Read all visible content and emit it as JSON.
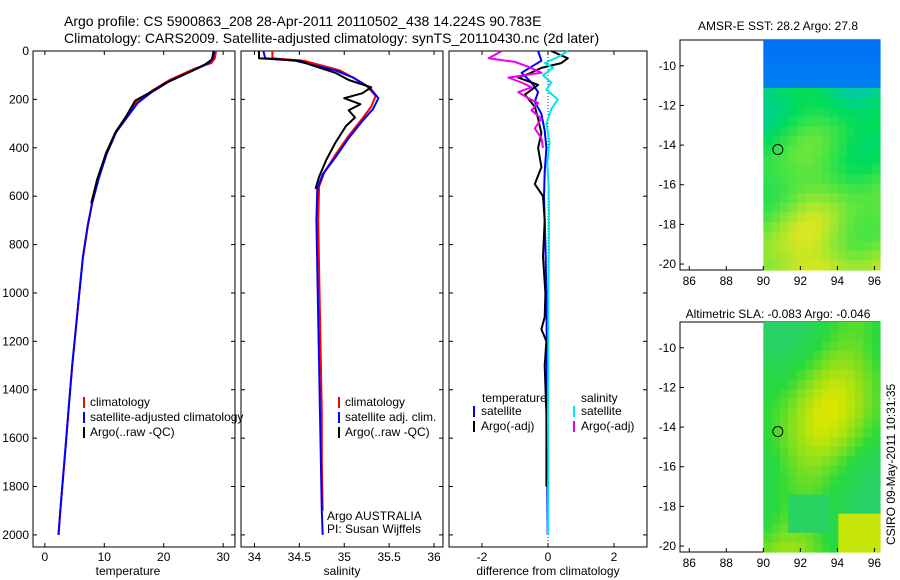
{
  "header": {
    "line1": "Argo profile: CS 5900863_208 28-Apr-2011 20110502_438 14.224S 90.783E",
    "line2": "Climatology: CARS2009. Satellite-adjusted climatology: synTS_20110430.nc (2d later)"
  },
  "footer": {
    "stamp": "CSIRO 09-May-2011 10:31:35",
    "argo_line1": "Argo AUSTRALIA",
    "argo_line2": "PI: Susan Wijffels"
  },
  "colors": {
    "climatology": "#ff0000",
    "satellite": "#0000ff",
    "argo": "#000000",
    "sal_satellite": "#00e5ee",
    "sal_argo": "#ee00ee"
  },
  "chart_data": [
    {
      "id": "temperature",
      "type": "line",
      "title": "",
      "xlabel": "temperature",
      "ylabel": "",
      "xlim": [
        -2,
        32
      ],
      "ylim": [
        2050,
        0
      ],
      "xticks": [
        0,
        10,
        20,
        30
      ],
      "yticks": [
        0,
        200,
        400,
        600,
        800,
        1000,
        1200,
        1400,
        1600,
        1800,
        2000
      ],
      "legend": [
        "climatology",
        "satellite-adjusted climatology",
        "Argo(..raw -QC)"
      ],
      "series": [
        {
          "name": "climatology",
          "color": "#ff0000",
          "points": [
            [
              28.8,
              0
            ],
            [
              28.6,
              30
            ],
            [
              28,
              50
            ],
            [
              25,
              75
            ],
            [
              21,
              120
            ],
            [
              18,
              165
            ],
            [
              15.5,
              210
            ],
            [
              14,
              260
            ],
            [
              12,
              330
            ],
            [
              10.3,
              420
            ],
            [
              9,
              520
            ],
            [
              8,
              620
            ],
            [
              7.2,
              720
            ],
            [
              6.4,
              850
            ],
            [
              5.8,
              1000
            ],
            [
              5.2,
              1150
            ],
            [
              4.6,
              1300
            ],
            [
              4.1,
              1450
            ],
            [
              3.6,
              1600
            ],
            [
              3.1,
              1750
            ],
            [
              2.6,
              1900
            ],
            [
              2.3,
              2000
            ]
          ]
        },
        {
          "name": "satellite-adjusted climatology",
          "color": "#0000ff",
          "points": [
            [
              28.5,
              0
            ],
            [
              28.3,
              30
            ],
            [
              27.6,
              50
            ],
            [
              25,
              80
            ],
            [
              21,
              125
            ],
            [
              18,
              170
            ],
            [
              15.6,
              215
            ],
            [
              14.1,
              265
            ],
            [
              12,
              335
            ],
            [
              10.4,
              425
            ],
            [
              9.1,
              525
            ],
            [
              8,
              625
            ],
            [
              7.2,
              725
            ],
            [
              6.4,
              855
            ],
            [
              5.8,
              1000
            ],
            [
              5.2,
              1150
            ],
            [
              4.6,
              1300
            ],
            [
              4.1,
              1450
            ],
            [
              3.6,
              1600
            ],
            [
              3.1,
              1750
            ],
            [
              2.6,
              1900
            ],
            [
              2.3,
              2000
            ]
          ]
        },
        {
          "name": "Argo(..raw -QC)",
          "color": "#000000",
          "points": [
            [
              28.4,
              0
            ],
            [
              28.1,
              35
            ],
            [
              27,
              55
            ],
            [
              24.5,
              85
            ],
            [
              20.5,
              130
            ],
            [
              17.8,
              170
            ],
            [
              15.2,
              205
            ],
            [
              13.8,
              265
            ],
            [
              11.8,
              340
            ],
            [
              10.2,
              430
            ],
            [
              8.8,
              530
            ],
            [
              7.8,
              630
            ]
          ]
        }
      ]
    },
    {
      "id": "salinity",
      "type": "line",
      "xlabel": "salinity",
      "ylabel": "",
      "xlim": [
        33.85,
        36.1
      ],
      "ylim": [
        2050,
        0
      ],
      "xticks": [
        34,
        34.5,
        35,
        35.5,
        36
      ],
      "yticks": [
        0,
        200,
        400,
        600,
        800,
        1000,
        1200,
        1400,
        1600,
        1800,
        2000
      ],
      "legend": [
        "climatology",
        "satellite adj. clim.",
        "Argo(..raw -QC)"
      ],
      "series": [
        {
          "name": "climatology",
          "color": "#ff0000",
          "points": [
            [
              34.2,
              0
            ],
            [
              34.2,
              30
            ],
            [
              34.55,
              40
            ],
            [
              34.7,
              55
            ],
            [
              34.95,
              80
            ],
            [
              35.1,
              110
            ],
            [
              35.25,
              145
            ],
            [
              35.35,
              185
            ],
            [
              35.3,
              230
            ],
            [
              35.2,
              280
            ],
            [
              35.05,
              350
            ],
            [
              34.9,
              430
            ],
            [
              34.78,
              500
            ],
            [
              34.72,
              560
            ],
            [
              34.71,
              700
            ],
            [
              34.72,
              900
            ],
            [
              34.73,
              1100
            ],
            [
              34.74,
              1300
            ],
            [
              34.75,
              1500
            ],
            [
              34.75,
              1700
            ],
            [
              34.76,
              1900
            ]
          ]
        },
        {
          "name": "satellite adj. clim.",
          "color": "#0000ff",
          "points": [
            [
              34.1,
              0
            ],
            [
              34.12,
              30
            ],
            [
              34.45,
              40
            ],
            [
              34.62,
              55
            ],
            [
              34.9,
              80
            ],
            [
              35.1,
              110
            ],
            [
              35.28,
              150
            ],
            [
              35.38,
              195
            ],
            [
              35.32,
              240
            ],
            [
              35.2,
              290
            ],
            [
              35.05,
              360
            ],
            [
              34.9,
              440
            ],
            [
              34.76,
              510
            ],
            [
              34.7,
              570
            ],
            [
              34.69,
              700
            ],
            [
              34.7,
              900
            ],
            [
              34.71,
              1100
            ],
            [
              34.72,
              1300
            ],
            [
              34.73,
              1500
            ],
            [
              34.74,
              1700
            ],
            [
              34.75,
              1900
            ],
            [
              34.76,
              2000
            ]
          ]
        },
        {
          "name": "Argo(..raw -QC)",
          "color": "#000000",
          "points": [
            [
              34.05,
              0
            ],
            [
              34.05,
              30
            ],
            [
              34.5,
              40
            ],
            [
              34.65,
              60
            ],
            [
              34.9,
              90
            ],
            [
              35.05,
              120
            ],
            [
              35.3,
              150
            ],
            [
              35.2,
              175
            ],
            [
              35.0,
              195
            ],
            [
              35.18,
              220
            ],
            [
              35.05,
              245
            ],
            [
              35.12,
              275
            ],
            [
              35.02,
              310
            ],
            [
              34.9,
              380
            ],
            [
              34.8,
              450
            ],
            [
              34.72,
              520
            ],
            [
              34.68,
              570
            ]
          ]
        }
      ]
    },
    {
      "id": "difference",
      "type": "line",
      "xlabel": "difference from climatology",
      "ylabel": "",
      "xlim": [
        -3,
        3
      ],
      "ylim": [
        2050,
        0
      ],
      "xticks": [
        -2,
        0,
        2
      ],
      "yticks": [
        0,
        200,
        400,
        600,
        800,
        1000,
        1200,
        1400,
        1600,
        1800,
        2000
      ],
      "legend_left_title": "temperature",
      "legend_right_title": "salinity",
      "legend": [
        "satellite",
        "Argo(-adj)",
        "satellite",
        "Argo(-adj)"
      ],
      "series": [
        {
          "name": "temperature satellite",
          "color": "#0000ff",
          "points": [
            [
              -0.3,
              0
            ],
            [
              -0.2,
              40
            ],
            [
              -0.8,
              90
            ],
            [
              -0.5,
              130
            ],
            [
              -0.3,
              170
            ],
            [
              -0.4,
              210
            ],
            [
              -0.2,
              260
            ],
            [
              -0.1,
              330
            ],
            [
              -0.05,
              400
            ],
            [
              -0.1,
              500
            ],
            [
              -0.12,
              600
            ],
            [
              -0.08,
              800
            ],
            [
              -0.05,
              1000
            ],
            [
              -0.04,
              1200
            ],
            [
              -0.03,
              1400
            ],
            [
              -0.02,
              1600
            ],
            [
              -0.02,
              1800
            ],
            [
              -0.01,
              2000
            ]
          ]
        },
        {
          "name": "temperature Argo(-adj)",
          "color": "#000000",
          "points": [
            [
              0.1,
              0
            ],
            [
              0.6,
              30
            ],
            [
              0.4,
              50
            ],
            [
              -0.2,
              70
            ],
            [
              -0.6,
              95
            ],
            [
              -0.9,
              110
            ],
            [
              -0.3,
              140
            ],
            [
              -0.7,
              180
            ],
            [
              -0.4,
              230
            ],
            [
              -0.3,
              280
            ],
            [
              -0.2,
              340
            ],
            [
              -0.3,
              400
            ],
            [
              -0.2,
              480
            ],
            [
              -0.4,
              550
            ],
            [
              -0.15,
              600
            ],
            [
              -0.1,
              700
            ],
            [
              -0.15,
              850
            ],
            [
              -0.08,
              1000
            ],
            [
              -0.1,
              1100
            ],
            [
              -0.2,
              1150
            ],
            [
              -0.05,
              1200
            ],
            [
              -0.1,
              1300
            ],
            [
              -0.05,
              1500
            ],
            [
              -0.05,
              1700
            ],
            [
              -0.05,
              1800
            ]
          ]
        },
        {
          "name": "salinity satellite",
          "color": "#00e5ee",
          "points": [
            [
              0.6,
              0
            ],
            [
              0.3,
              25
            ],
            [
              -0.1,
              50
            ],
            [
              0.15,
              70
            ],
            [
              -0.15,
              100
            ],
            [
              0.1,
              130
            ],
            [
              -0.05,
              160
            ],
            [
              0.3,
              200
            ],
            [
              0.1,
              240
            ],
            [
              -0.05,
              300
            ],
            [
              0.05,
              380
            ],
            [
              -0.02,
              460
            ],
            [
              0.02,
              560
            ],
            [
              0.03,
              700
            ],
            [
              0.02,
              900
            ],
            [
              0.01,
              1100
            ],
            [
              0.01,
              1300
            ],
            [
              0.0,
              1500
            ],
            [
              0.01,
              1700
            ],
            [
              0.0,
              2000
            ]
          ]
        },
        {
          "name": "salinity Argo(-adj)",
          "color": "#ee00ee",
          "points": [
            [
              -1.4,
              0
            ],
            [
              -1.8,
              30
            ],
            [
              -1.0,
              45
            ],
            [
              -0.6,
              65
            ],
            [
              -0.2,
              90
            ],
            [
              -1.2,
              110
            ],
            [
              -0.8,
              130
            ],
            [
              -0.5,
              150
            ],
            [
              -0.9,
              170
            ],
            [
              -0.6,
              195
            ],
            [
              -0.3,
              215
            ],
            [
              -0.5,
              245
            ],
            [
              -0.2,
              280
            ],
            [
              -0.4,
              320
            ],
            [
              -0.2,
              360
            ],
            [
              -0.15,
              400
            ]
          ]
        }
      ]
    },
    {
      "id": "sst_map",
      "type": "heatmap",
      "title": "AMSR-E SST: 28.2 Argo: 27.8",
      "xlim": [
        85.5,
        96.3
      ],
      "ylim": [
        -20.3,
        -8.7
      ],
      "xticks": [
        86,
        88,
        90,
        92,
        94,
        96
      ],
      "yticks": [
        -10,
        -12,
        -14,
        -16,
        -18,
        -20
      ],
      "float_position": [
        90.783,
        -14.224
      ]
    },
    {
      "id": "sla_map",
      "type": "heatmap",
      "title": "Altimetric SLA: -0.083 Argo: -0.046",
      "xlim": [
        85.5,
        96.3
      ],
      "ylim": [
        -20.3,
        -8.7
      ],
      "xticks": [
        86,
        88,
        90,
        92,
        94,
        96
      ],
      "yticks": [
        -10,
        -12,
        -14,
        -16,
        -18,
        -20
      ],
      "float_position": [
        90.783,
        -14.224
      ]
    }
  ]
}
